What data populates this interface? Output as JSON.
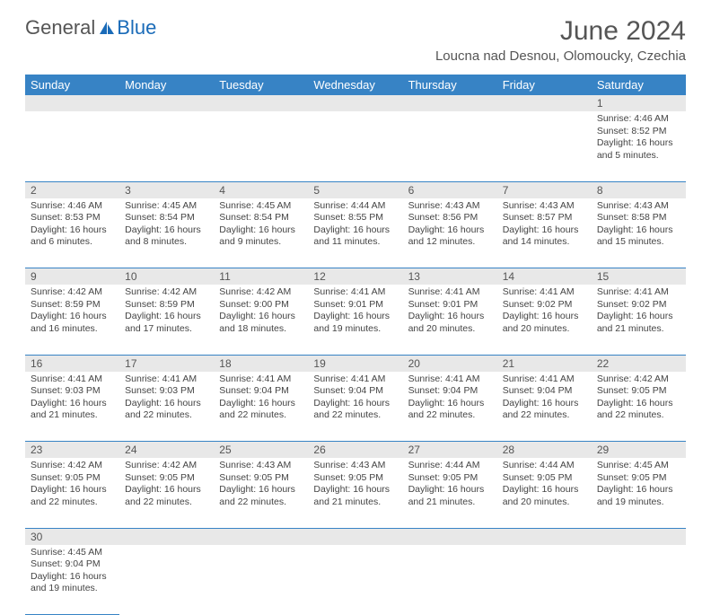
{
  "logo": {
    "text1": "General",
    "text2": "Blue"
  },
  "title": "June 2024",
  "location": "Loucna nad Desnou, Olomoucky, Czechia",
  "colors": {
    "header_bg": "#3783c5",
    "header_text": "#ffffff",
    "daynum_bg": "#e8e8e8",
    "text": "#444444",
    "border": "#3783c5",
    "logo_gray": "#555555",
    "logo_blue": "#1a6bb8"
  },
  "weekdays": [
    "Sunday",
    "Monday",
    "Tuesday",
    "Wednesday",
    "Thursday",
    "Friday",
    "Saturday"
  ],
  "weeks": [
    [
      null,
      null,
      null,
      null,
      null,
      null,
      {
        "n": "1",
        "sr": "4:46 AM",
        "ss": "8:52 PM",
        "dl": "16 hours and 5 minutes."
      }
    ],
    [
      {
        "n": "2",
        "sr": "4:46 AM",
        "ss": "8:53 PM",
        "dl": "16 hours and 6 minutes."
      },
      {
        "n": "3",
        "sr": "4:45 AM",
        "ss": "8:54 PM",
        "dl": "16 hours and 8 minutes."
      },
      {
        "n": "4",
        "sr": "4:45 AM",
        "ss": "8:54 PM",
        "dl": "16 hours and 9 minutes."
      },
      {
        "n": "5",
        "sr": "4:44 AM",
        "ss": "8:55 PM",
        "dl": "16 hours and 11 minutes."
      },
      {
        "n": "6",
        "sr": "4:43 AM",
        "ss": "8:56 PM",
        "dl": "16 hours and 12 minutes."
      },
      {
        "n": "7",
        "sr": "4:43 AM",
        "ss": "8:57 PM",
        "dl": "16 hours and 14 minutes."
      },
      {
        "n": "8",
        "sr": "4:43 AM",
        "ss": "8:58 PM",
        "dl": "16 hours and 15 minutes."
      }
    ],
    [
      {
        "n": "9",
        "sr": "4:42 AM",
        "ss": "8:59 PM",
        "dl": "16 hours and 16 minutes."
      },
      {
        "n": "10",
        "sr": "4:42 AM",
        "ss": "8:59 PM",
        "dl": "16 hours and 17 minutes."
      },
      {
        "n": "11",
        "sr": "4:42 AM",
        "ss": "9:00 PM",
        "dl": "16 hours and 18 minutes."
      },
      {
        "n": "12",
        "sr": "4:41 AM",
        "ss": "9:01 PM",
        "dl": "16 hours and 19 minutes."
      },
      {
        "n": "13",
        "sr": "4:41 AM",
        "ss": "9:01 PM",
        "dl": "16 hours and 20 minutes."
      },
      {
        "n": "14",
        "sr": "4:41 AM",
        "ss": "9:02 PM",
        "dl": "16 hours and 20 minutes."
      },
      {
        "n": "15",
        "sr": "4:41 AM",
        "ss": "9:02 PM",
        "dl": "16 hours and 21 minutes."
      }
    ],
    [
      {
        "n": "16",
        "sr": "4:41 AM",
        "ss": "9:03 PM",
        "dl": "16 hours and 21 minutes."
      },
      {
        "n": "17",
        "sr": "4:41 AM",
        "ss": "9:03 PM",
        "dl": "16 hours and 22 minutes."
      },
      {
        "n": "18",
        "sr": "4:41 AM",
        "ss": "9:04 PM",
        "dl": "16 hours and 22 minutes."
      },
      {
        "n": "19",
        "sr": "4:41 AM",
        "ss": "9:04 PM",
        "dl": "16 hours and 22 minutes."
      },
      {
        "n": "20",
        "sr": "4:41 AM",
        "ss": "9:04 PM",
        "dl": "16 hours and 22 minutes."
      },
      {
        "n": "21",
        "sr": "4:41 AM",
        "ss": "9:04 PM",
        "dl": "16 hours and 22 minutes."
      },
      {
        "n": "22",
        "sr": "4:42 AM",
        "ss": "9:05 PM",
        "dl": "16 hours and 22 minutes."
      }
    ],
    [
      {
        "n": "23",
        "sr": "4:42 AM",
        "ss": "9:05 PM",
        "dl": "16 hours and 22 minutes."
      },
      {
        "n": "24",
        "sr": "4:42 AM",
        "ss": "9:05 PM",
        "dl": "16 hours and 22 minutes."
      },
      {
        "n": "25",
        "sr": "4:43 AM",
        "ss": "9:05 PM",
        "dl": "16 hours and 22 minutes."
      },
      {
        "n": "26",
        "sr": "4:43 AM",
        "ss": "9:05 PM",
        "dl": "16 hours and 21 minutes."
      },
      {
        "n": "27",
        "sr": "4:44 AM",
        "ss": "9:05 PM",
        "dl": "16 hours and 21 minutes."
      },
      {
        "n": "28",
        "sr": "4:44 AM",
        "ss": "9:05 PM",
        "dl": "16 hours and 20 minutes."
      },
      {
        "n": "29",
        "sr": "4:45 AM",
        "ss": "9:05 PM",
        "dl": "16 hours and 19 minutes."
      }
    ],
    [
      {
        "n": "30",
        "sr": "4:45 AM",
        "ss": "9:04 PM",
        "dl": "16 hours and 19 minutes."
      },
      null,
      null,
      null,
      null,
      null,
      null
    ]
  ],
  "labels": {
    "sunrise": "Sunrise:",
    "sunset": "Sunset:",
    "daylight": "Daylight:"
  }
}
